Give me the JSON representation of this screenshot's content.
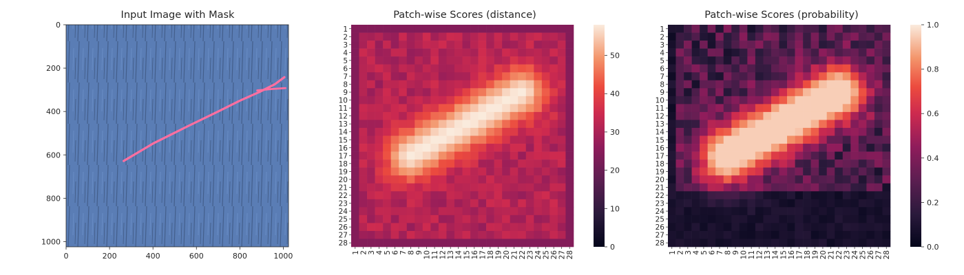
{
  "chart_data": [
    {
      "type": "image",
      "title": "Input Image with Mask",
      "xlim": [
        0,
        1024
      ],
      "ylim": [
        1024,
        0
      ],
      "xticks": [
        "0",
        "200",
        "400",
        "600",
        "800",
        "1000"
      ],
      "yticks": [
        "0",
        "200",
        "400",
        "600",
        "800",
        "1000"
      ],
      "background_color": "#5a7db5",
      "mask_color": "#ff6fa0",
      "mask_polyline": [
        [
          265,
          628
        ],
        [
          400,
          548
        ],
        [
          560,
          468
        ],
        [
          700,
          400
        ],
        [
          800,
          350
        ],
        [
          890,
          310
        ],
        [
          960,
          275
        ],
        [
          1005,
          242
        ]
      ],
      "mask_branch": [
        [
          880,
          303
        ],
        [
          950,
          296
        ],
        [
          1010,
          292
        ]
      ]
    },
    {
      "type": "heatmap",
      "title": "Patch-wise Scores (distance)",
      "rows": 28,
      "cols": 28,
      "row_labels": [
        "1",
        "2",
        "3",
        "4",
        "5",
        "6",
        "7",
        "8",
        "9",
        "10",
        "11",
        "12",
        "13",
        "14",
        "15",
        "16",
        "17",
        "18",
        "19",
        "20",
        "21",
        "22",
        "23",
        "24",
        "25",
        "26",
        "27",
        "28"
      ],
      "col_labels": [
        "1",
        "2",
        "3",
        "4",
        "5",
        "6",
        "7",
        "8",
        "9",
        "10",
        "11",
        "12",
        "13",
        "14",
        "15",
        "16",
        "17",
        "18",
        "19",
        "20",
        "21",
        "22",
        "23",
        "24",
        "25",
        "26",
        "27",
        "28"
      ],
      "colorbar_range": [
        0,
        58
      ],
      "colorbar_ticks": [
        "0",
        "10",
        "20",
        "30",
        "40",
        "50"
      ],
      "model": {
        "background": 31,
        "peak": 58,
        "band": {
          "start": [
            17,
            8
          ],
          "end": [
            9,
            22
          ],
          "width": 2.3
        },
        "border_value": 24
      }
    },
    {
      "type": "heatmap",
      "title": "Patch-wise Scores (probability)",
      "rows": 28,
      "cols": 28,
      "row_labels": [
        "1",
        "2",
        "3",
        "4",
        "5",
        "6",
        "7",
        "8",
        "9",
        "10",
        "11",
        "12",
        "13",
        "14",
        "15",
        "16",
        "17",
        "18",
        "19",
        "20",
        "21",
        "22",
        "23",
        "24",
        "25",
        "26",
        "27",
        "28"
      ],
      "col_labels": [
        "1",
        "2",
        "3",
        "4",
        "5",
        "6",
        "7",
        "8",
        "9",
        "10",
        "11",
        "12",
        "13",
        "14",
        "15",
        "16",
        "17",
        "18",
        "19",
        "20",
        "21",
        "22",
        "23",
        "24",
        "25",
        "26",
        "27",
        "28"
      ],
      "colorbar_range": [
        0,
        1
      ],
      "colorbar_ticks": [
        "0.0",
        "0.2",
        "0.4",
        "0.6",
        "0.8",
        "1.0"
      ],
      "model": {
        "background": 0.25,
        "peak": 0.95,
        "band": {
          "start": [
            17,
            8
          ],
          "end": [
            9,
            22
          ],
          "width": 2.6
        },
        "low_region_rows": [
          22,
          28
        ],
        "low_value": 0.04
      }
    }
  ]
}
